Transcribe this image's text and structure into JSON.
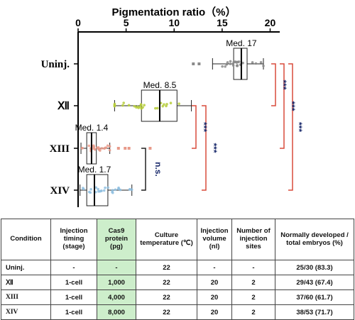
{
  "chart_data": {
    "type": "box",
    "title": "Pigmentation ratio（%）",
    "xlim": [
      0,
      21
    ],
    "xticks": [
      0,
      5,
      10,
      15,
      20
    ],
    "categories": [
      "Uninj.",
      "Ⅻ",
      "XIII",
      "XIV"
    ],
    "medians": [
      17,
      8.5,
      1.4,
      1.7
    ],
    "median_labels": [
      "Med. 17",
      "Med. 8.5",
      "Med. 1.4",
      "Med. 1.7"
    ],
    "boxes": [
      {
        "q1": 16.2,
        "med": 17,
        "q3": 17.6,
        "min": 14.0,
        "max": 19.3,
        "color": "#8a8a8a"
      },
      {
        "q1": 6.6,
        "med": 8.5,
        "q3": 10.3,
        "min": 3.8,
        "max": 11.8,
        "color": "#b6cc3a"
      },
      {
        "q1": 0.9,
        "med": 1.4,
        "q3": 1.9,
        "min": 0.3,
        "max": 3.3,
        "color": "#e89a8a"
      },
      {
        "q1": 0.9,
        "med": 1.7,
        "q3": 3.1,
        "min": 0.2,
        "max": 5.6,
        "color": "#8fbfe0"
      }
    ],
    "outliers": [
      [
        12.0,
        12.6
      ],
      [],
      [
        4.2,
        4.9,
        5.3,
        7.5
      ],
      []
    ],
    "significance": [
      {
        "from": "XIII",
        "to": "XIV",
        "label": "n.s."
      },
      {
        "from": "Ⅻ",
        "to": "XIII",
        "label": "***"
      },
      {
        "from": "Ⅻ",
        "to": "XIV",
        "label": "***"
      },
      {
        "from": "Uninj.",
        "to": "Ⅻ",
        "label": "***"
      },
      {
        "from": "Uninj.",
        "to": "XIII",
        "label": "***"
      },
      {
        "from": "Uninj.",
        "to": "XIV",
        "label": "***"
      }
    ]
  },
  "table": {
    "headers": [
      "Condition",
      "Injection timing (stage)",
      "Cas9 protein (pg)",
      "Culture temperature (℃)",
      "Injection volume (nl)",
      "Number of injection sites",
      "Normally developed / total embryos (%)"
    ],
    "rows": [
      [
        "Uninj.",
        "-",
        "-",
        "22",
        "-",
        "-",
        "25/30 (83.3)"
      ],
      [
        "Ⅻ",
        "1-cell",
        "1,000",
        "22",
        "20",
        "2",
        "29/43 (67.4)"
      ],
      [
        "XIII",
        "1-cell",
        "4,000",
        "22",
        "20",
        "2",
        "37/60 (61.7)"
      ],
      [
        "XIV",
        "1-cell",
        "8,000",
        "22",
        "20",
        "2",
        "38/53 (71.7)"
      ]
    ],
    "highlight_color": "#cdeecb"
  }
}
